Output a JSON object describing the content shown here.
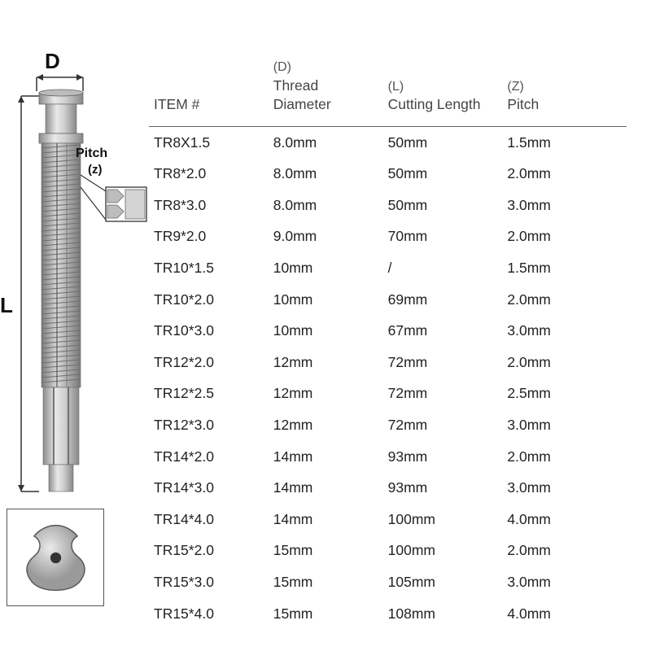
{
  "diagram": {
    "d_label": "D",
    "l_label": "L",
    "pitch_label": "Pitch",
    "pitch_sub": "(z)",
    "tap_body_color": "#b8b8b8",
    "tap_highlight": "#e8e8e8",
    "tap_thread_color": "#9a9a9a",
    "line_color": "#333333"
  },
  "table": {
    "headers": {
      "item": "ITEM #",
      "d_sup": "(D)",
      "d_main": "Thread Diameter",
      "l_sup": "(L)",
      "l_main": "Cutting Length",
      "z_sup": "(Z)",
      "z_main": "Pitch"
    },
    "rows": [
      {
        "item": "TR8X1.5",
        "d": "8.0mm",
        "l": "50mm",
        "z": "1.5mm"
      },
      {
        "item": "TR8*2.0",
        "d": "8.0mm",
        "l": "50mm",
        "z": "2.0mm"
      },
      {
        "item": "TR8*3.0",
        "d": "8.0mm",
        "l": "50mm",
        "z": "3.0mm"
      },
      {
        "item": "TR9*2.0",
        "d": "9.0mm",
        "l": "70mm",
        "z": "2.0mm"
      },
      {
        "item": "TR10*1.5",
        "d": "10mm",
        "l": "/",
        "z": "1.5mm"
      },
      {
        "item": "TR10*2.0",
        "d": "10mm",
        "l": "69mm",
        "z": "2.0mm"
      },
      {
        "item": "TR10*3.0",
        "d": "10mm",
        "l": "67mm",
        "z": "3.0mm"
      },
      {
        "item": "TR12*2.0",
        "d": "12mm",
        "l": "72mm",
        "z": "2.0mm"
      },
      {
        "item": "TR12*2.5",
        "d": "12mm",
        "l": "72mm",
        "z": "2.5mm"
      },
      {
        "item": "TR12*3.0",
        "d": "12mm",
        "l": "72mm",
        "z": "3.0mm"
      },
      {
        "item": "TR14*2.0",
        "d": "14mm",
        "l": "93mm",
        "z": "2.0mm"
      },
      {
        "item": "TR14*3.0",
        "d": "14mm",
        "l": "93mm",
        "z": "3.0mm"
      },
      {
        "item": "TR14*4.0",
        "d": "14mm",
        "l": "100mm",
        "z": "4.0mm"
      },
      {
        "item": "TR15*2.0",
        "d": "15mm",
        "l": "100mm",
        "z": "2.0mm"
      },
      {
        "item": "TR15*3.0",
        "d": "15mm",
        "l": "105mm",
        "z": "3.0mm"
      },
      {
        "item": "TR15*4.0",
        "d": "15mm",
        "l": "108mm",
        "z": "4.0mm"
      }
    ]
  },
  "colors": {
    "text": "#333333",
    "header_border": "#666666",
    "background": "#ffffff"
  }
}
